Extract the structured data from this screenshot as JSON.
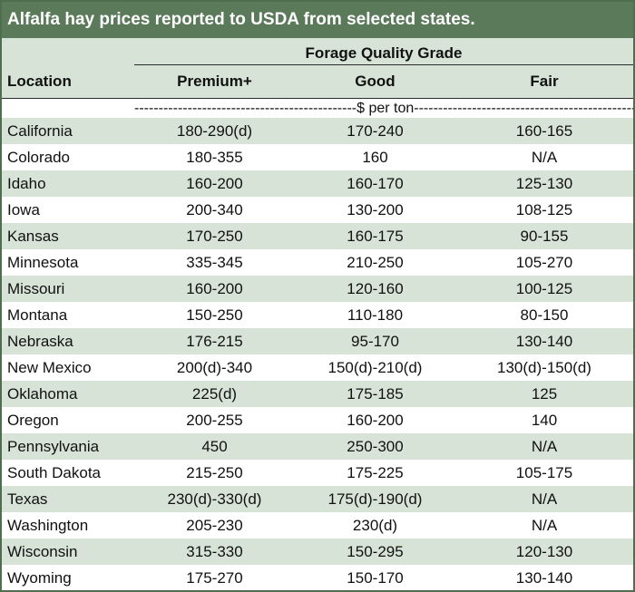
{
  "title": "Alfalfa hay prices reported to USDA from selected states.",
  "group_header": "Forage Quality Grade",
  "columns": {
    "location": "Location",
    "premium": "Premium+",
    "good": "Good",
    "fair": "Fair"
  },
  "unit": "----------------------------------------------$ per ton-----------------------------------------------",
  "rows": [
    {
      "location": "California",
      "premium": "180-290(d)",
      "good": "170-240",
      "fair": "160-165"
    },
    {
      "location": "Colorado",
      "premium": "180-355",
      "good": "160",
      "fair": "N/A"
    },
    {
      "location": "Idaho",
      "premium": "160-200",
      "good": "160-170",
      "fair": "125-130"
    },
    {
      "location": "Iowa",
      "premium": "200-340",
      "good": "130-200",
      "fair": "108-125"
    },
    {
      "location": "Kansas",
      "premium": "170-250",
      "good": "160-175",
      "fair": "90-155"
    },
    {
      "location": "Minnesota",
      "premium": "335-345",
      "good": "210-250",
      "fair": "105-270"
    },
    {
      "location": "Missouri",
      "premium": "160-200",
      "good": "120-160",
      "fair": "100-125"
    },
    {
      "location": "Montana",
      "premium": "150-250",
      "good": "110-180",
      "fair": "80-150"
    },
    {
      "location": "Nebraska",
      "premium": "176-215",
      "good": "95-170",
      "fair": "130-140"
    },
    {
      "location": "New Mexico",
      "premium": "200(d)-340",
      "good": "150(d)-210(d)",
      "fair": "130(d)-150(d)"
    },
    {
      "location": "Oklahoma",
      "premium": "225(d)",
      "good": "175-185",
      "fair": "125"
    },
    {
      "location": "Oregon",
      "premium": "200-255",
      "good": "160-200",
      "fair": "140"
    },
    {
      "location": "Pennsylvania",
      "premium": "450",
      "good": "250-300",
      "fair": "N/A"
    },
    {
      "location": "South Dakota",
      "premium": "215-250",
      "good": "175-225",
      "fair": "105-175"
    },
    {
      "location": "Texas",
      "premium": "230(d)-330(d)",
      "good": "175(d)-190(d)",
      "fair": "N/A"
    },
    {
      "location": "Washington",
      "premium": "205-230",
      "good": "230(d)",
      "fair": "N/A"
    },
    {
      "location": "Wisconsin",
      "premium": "315-330",
      "good": "150-295",
      "fair": "120-130"
    },
    {
      "location": "Wyoming",
      "premium": "175-270",
      "good": "150-170",
      "fair": "130-140"
    }
  ],
  "colors": {
    "title_bg": "#5a7a5a",
    "band_bg": "#d7e3d7",
    "border": "#4e6e4e"
  }
}
